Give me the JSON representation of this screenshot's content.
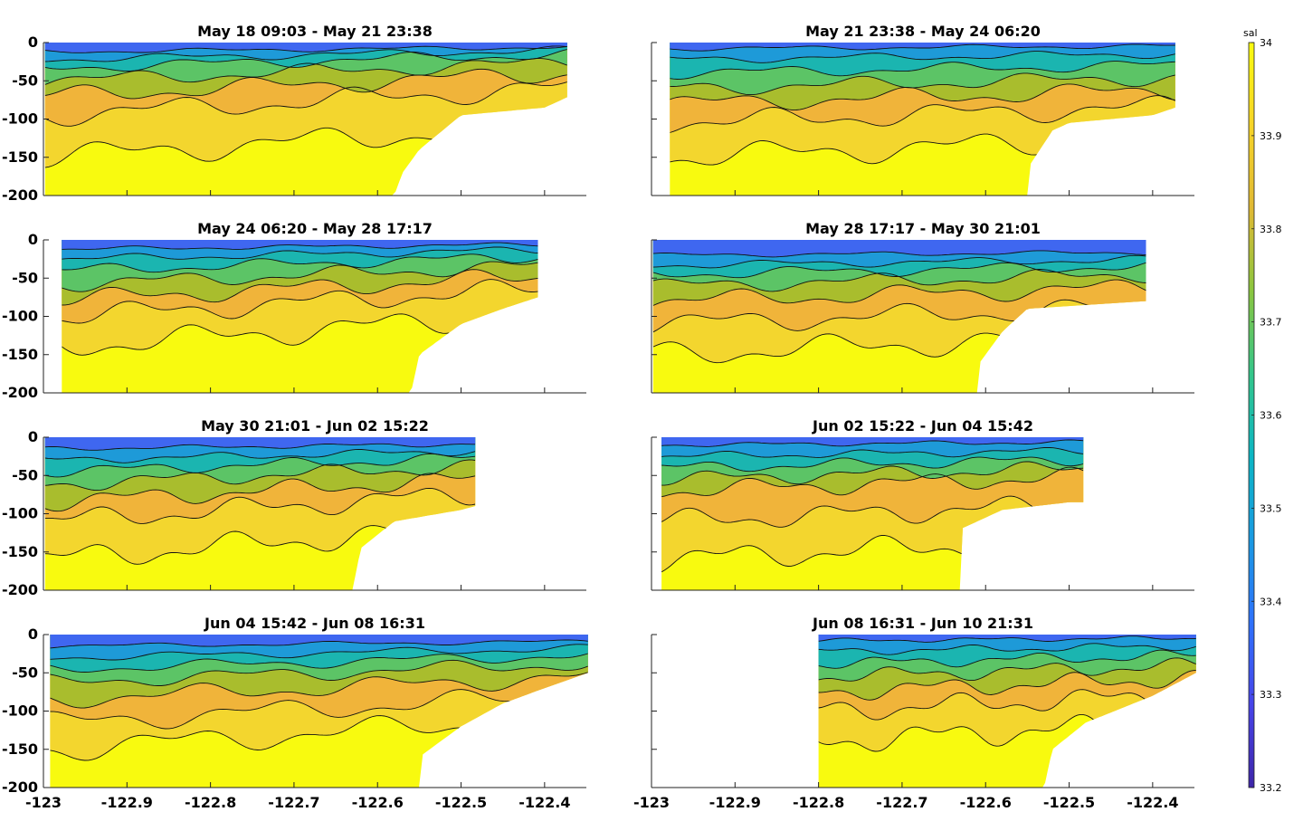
{
  "chart_data": {
    "type": "heatmap",
    "figure_kind": "contour sections of salinity vs longitude and depth",
    "panels": [
      {
        "title": "May 18 09:03 - May 21 23:38",
        "lon_range": [
          -122.998,
          -122.373
        ],
        "bottom_profile": [
          [
            -123.0,
            -200
          ],
          [
            -122.58,
            -200
          ],
          [
            -122.57,
            -170
          ],
          [
            -122.55,
            -140
          ],
          [
            -122.5,
            -95
          ],
          [
            -122.4,
            -85
          ],
          [
            -122.37,
            -70
          ]
        ],
        "cline_depths": [
          12,
          22,
          33,
          50,
          70,
          95,
          150
        ],
        "wave": 1
      },
      {
        "title": "May 21 23:38 - May 24 06:20",
        "lon_range": [
          -122.978,
          -122.373
        ],
        "bottom_profile": [
          [
            -122.978,
            -200
          ],
          [
            -122.55,
            -200
          ],
          [
            -122.55,
            -165
          ],
          [
            -122.52,
            -115
          ],
          [
            -122.5,
            -105
          ],
          [
            -122.4,
            -95
          ],
          [
            -122.373,
            -85
          ]
        ],
        "cline_depths": [
          8,
          22,
          40,
          60,
          80,
          105,
          150
        ],
        "wave": 2
      },
      {
        "title": "May 24 06:20 - May 28 17:17",
        "lon_range": [
          -122.978,
          -122.408
        ],
        "bottom_profile": [
          [
            -122.978,
            -200
          ],
          [
            -122.56,
            -200
          ],
          [
            -122.55,
            -150
          ],
          [
            -122.5,
            -110
          ],
          [
            -122.45,
            -90
          ],
          [
            -122.408,
            -75
          ]
        ],
        "cline_depths": [
          12,
          25,
          40,
          58,
          78,
          100,
          140
        ],
        "wave": 3
      },
      {
        "title": "May 28 17:17 - May 30 21:01",
        "lon_range": [
          -122.998,
          -122.408
        ],
        "bottom_profile": [
          [
            -122.998,
            -200
          ],
          [
            -122.61,
            -200
          ],
          [
            -122.61,
            -165
          ],
          [
            -122.58,
            -120
          ],
          [
            -122.55,
            -90
          ],
          [
            -122.408,
            -80
          ]
        ],
        "cline_depths": [
          20,
          33,
          45,
          60,
          80,
          110,
          150
        ],
        "wave": 4
      },
      {
        "title": "May 30 21:01 - Jun 02 15:22",
        "lon_range": [
          -122.998,
          -122.483
        ],
        "bottom_profile": [
          [
            -122.998,
            -200
          ],
          [
            -122.63,
            -200
          ],
          [
            -122.62,
            -145
          ],
          [
            -122.58,
            -110
          ],
          [
            -122.5,
            -95
          ],
          [
            -122.483,
            -90
          ]
        ],
        "cline_depths": [
          15,
          30,
          45,
          62,
          85,
          110,
          160
        ],
        "wave": 5
      },
      {
        "title": "Jun 02 15:22 - Jun 04 15:42",
        "lon_range": [
          -122.988,
          -122.483
        ],
        "bottom_profile": [
          [
            -122.988,
            -200
          ],
          [
            -122.63,
            -200
          ],
          [
            -122.63,
            -120
          ],
          [
            -122.58,
            -95
          ],
          [
            -122.5,
            -85
          ],
          [
            -122.483,
            -85
          ]
        ],
        "cline_depths": [
          10,
          25,
          40,
          55,
          70,
          110,
          160
        ],
        "wave": 6
      },
      {
        "title": "Jun 04 15:42 - Jun 08 16:31",
        "lon_range": [
          -122.992,
          -122.348
        ],
        "bottom_profile": [
          [
            -122.992,
            -200
          ],
          [
            -122.55,
            -200
          ],
          [
            -122.55,
            -160
          ],
          [
            -122.5,
            -120
          ],
          [
            -122.45,
            -90
          ],
          [
            -122.4,
            -70
          ],
          [
            -122.348,
            -50
          ]
        ],
        "cline_depths": [
          15,
          30,
          45,
          62,
          85,
          115,
          150
        ],
        "wave": 7
      },
      {
        "title": "Jun 08 16:31 - Jun 10 21:31",
        "lon_range": [
          -122.8,
          -122.348
        ],
        "bottom_profile": [
          [
            -122.8,
            -200
          ],
          [
            -122.53,
            -200
          ],
          [
            -122.52,
            -150
          ],
          [
            -122.48,
            -115
          ],
          [
            -122.4,
            -80
          ],
          [
            -122.348,
            -50
          ]
        ],
        "cline_depths": [
          8,
          22,
          38,
          55,
          75,
          100,
          140
        ],
        "wave": 8
      }
    ],
    "xlim": [
      -123,
      -122.35
    ],
    "ylim": [
      -200,
      0
    ],
    "x_ticks": [
      -123,
      -122.9,
      -122.8,
      -122.7,
      -122.6,
      -122.5,
      -122.4
    ],
    "x_tick_labels": [
      "-123",
      "-122.9",
      "-122.8",
      "-122.7",
      "-122.6",
      "-122.5",
      "-122.4"
    ],
    "y_ticks": [
      0,
      -50,
      -100,
      -150,
      -200
    ],
    "y_tick_labels": [
      "0",
      "-50",
      "-100",
      "-150",
      "-200"
    ],
    "colorbar": {
      "label": "sal",
      "range": [
        33.2,
        34
      ],
      "ticks": [
        34,
        33.9,
        33.8,
        33.7,
        33.6,
        33.5,
        33.4,
        33.3,
        33.2
      ],
      "tick_labels": [
        "34",
        "33.9",
        "33.8",
        "33.7",
        "33.6",
        "33.5",
        "33.4",
        "33.3",
        "33.2"
      ],
      "colormap": "parula"
    },
    "layer_colors": [
      "#3f67f0",
      "#1e9ad8",
      "#1bb5b0",
      "#5cc466",
      "#a9bd2d",
      "#f0b43a",
      "#f3d62e",
      "#f8fa0f"
    ],
    "grid": false,
    "legend": "colorbar right"
  }
}
